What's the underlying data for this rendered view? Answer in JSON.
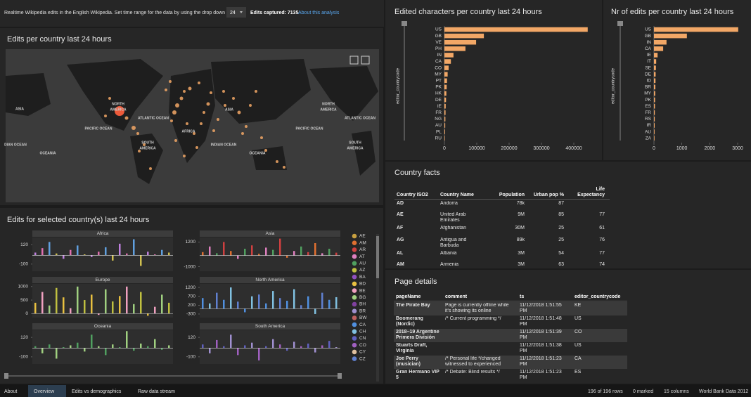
{
  "header": {
    "description": "Realtime Wikipedia edits in the English Wikipedia. Set time range for the data by using the drop down",
    "time_range": "24",
    "edits_captured": "Edits captured: 7135",
    "link": "About this analysis"
  },
  "map": {
    "title": "Edits per country last 24 hours",
    "labels": [
      "ASIA",
      "NORTH",
      "AMERICA",
      "PACIFIC OCEAN",
      "ATLANTIC OCEAN",
      "ASIA",
      "AFRICA",
      "SOUTH",
      "AMERICA",
      "INDIAN OCEAN",
      "OCEANIA",
      "OCEANIA",
      "NORTH",
      "AMERICA",
      "PACIFIC OCEAN",
      "ATLANTIC OCEAN",
      "SOUTH",
      "AMERICA",
      "DIAN OCEAN"
    ]
  },
  "country_timeseries": {
    "title": "Edits for selected country(s) last 24 hours",
    "panels": [
      {
        "name": "Africa",
        "ylim": [
          -180,
          200
        ],
        "yticks": [
          120,
          -100
        ],
        "colors": [
          "#c080e0",
          "#e070b0",
          "#60a0e0",
          "#d0c050"
        ],
        "values": [
          30,
          80,
          150,
          20,
          -40,
          60,
          110,
          10,
          -20,
          40,
          90,
          -60,
          130,
          20,
          180,
          -120,
          40,
          10,
          60,
          30
        ]
      },
      {
        "name": "Asia",
        "ylim": [
          -1400,
          1600
        ],
        "yticks": [
          1200,
          -1000
        ],
        "colors": [
          "#e07030",
          "#e080c0",
          "#50a060",
          "#d04040"
        ],
        "values": [
          300,
          800,
          200,
          1200,
          400,
          -300,
          600,
          900,
          150,
          700,
          500,
          1500,
          -200,
          400,
          800,
          300,
          1100,
          200,
          600,
          250
        ]
      },
      {
        "name": "Europe",
        "ylim": [
          -150,
          1100
        ],
        "yticks": [
          1000,
          500,
          0
        ],
        "colors": [
          "#e8c040",
          "#f0a0c0",
          "#a0d080",
          "#c0c040"
        ],
        "values": [
          400,
          800,
          300,
          950,
          600,
          200,
          1000,
          500,
          700,
          -50,
          900,
          450,
          650,
          1000,
          350,
          800,
          -80,
          250,
          700,
          400
        ]
      },
      {
        "name": "North America",
        "ylim": [
          -500,
          1400
        ],
        "yticks": [
          1200,
          700,
          200,
          -300
        ],
        "colors": [
          "#5090e0",
          "#80c0e0",
          "#6080d0"
        ],
        "values": [
          600,
          300,
          900,
          500,
          1200,
          400,
          -200,
          700,
          800,
          300,
          1000,
          600,
          450,
          1100,
          200,
          700,
          -300,
          900,
          500,
          650
        ]
      },
      {
        "name": "Oceania",
        "ylim": [
          -180,
          200
        ],
        "yticks": [
          120,
          -100
        ],
        "colors": [
          "#50a060",
          "#a0d080"
        ],
        "values": [
          20,
          -60,
          40,
          -120,
          10,
          30,
          60,
          -40,
          150,
          20,
          -80,
          40,
          10,
          190,
          -30,
          50,
          20,
          100,
          -20,
          30
        ]
      },
      {
        "name": "South America",
        "ylim": [
          -180,
          200
        ],
        "yticks": [
          120,
          -100
        ],
        "colors": [
          "#6060c0",
          "#a090d0",
          "#a060c0"
        ],
        "values": [
          40,
          -60,
          90,
          20,
          150,
          -80,
          30,
          60,
          -140,
          20,
          100,
          40,
          -30,
          70,
          20,
          50,
          -50,
          30,
          80,
          10
        ]
      }
    ],
    "legend": [
      {
        "name": "AE",
        "color": "#c8a040"
      },
      {
        "name": "AM",
        "color": "#e07030"
      },
      {
        "name": "AR",
        "color": "#d04040"
      },
      {
        "name": "AT",
        "color": "#e080c0"
      },
      {
        "name": "AU",
        "color": "#50a060"
      },
      {
        "name": "AZ",
        "color": "#c0c040"
      },
      {
        "name": "BA",
        "color": "#9050c0"
      },
      {
        "name": "BD",
        "color": "#e8c040"
      },
      {
        "name": "BE",
        "color": "#f0a0c0"
      },
      {
        "name": "BG",
        "color": "#a0d080"
      },
      {
        "name": "BH",
        "color": "#8040a0"
      },
      {
        "name": "BR",
        "color": "#a090d0"
      },
      {
        "name": "BW",
        "color": "#c06060"
      },
      {
        "name": "CA",
        "color": "#5090e0"
      },
      {
        "name": "CH",
        "color": "#80c0e0"
      },
      {
        "name": "CN",
        "color": "#6060c0"
      },
      {
        "name": "CO",
        "color": "#a060c0"
      },
      {
        "name": "CY",
        "color": "#e0c0a0"
      },
      {
        "name": "CZ",
        "color": "#6080d0"
      }
    ]
  },
  "char_chart": {
    "type": "bar",
    "title": "Edited characters per country last 24 hours",
    "axis_label": "editor_countrycode",
    "categories": [
      "US",
      "GB",
      "VE",
      "PH",
      "IN",
      "CA",
      "CO",
      "MY",
      "PT",
      "PK",
      "HK",
      "DE",
      "IE",
      "FR",
      "NG",
      "AU",
      "PL",
      "RU"
    ],
    "values": [
      443000,
      122000,
      98000,
      65000,
      28000,
      20000,
      13000,
      10000,
      8000,
      7000,
      6000,
      5000,
      4000,
      3500,
      3000,
      2500,
      2000,
      1500
    ],
    "color": "#f2a766",
    "xlim": [
      0,
      450000
    ],
    "xticks": [
      0,
      100000,
      200000,
      300000,
      400000
    ]
  },
  "edits_chart": {
    "type": "bar",
    "title": "Nr of edits per country last 24 hours",
    "axis_label": "editor_countrycode",
    "categories": [
      "US",
      "GB",
      "IN",
      "CA",
      "IE",
      "IT",
      "SE",
      "DE",
      "ID",
      "BR",
      "MY",
      "PK",
      "ES",
      "FR",
      "RS",
      "IR",
      "AU",
      "ZA"
    ],
    "values": [
      3020,
      1180,
      450,
      330,
      130,
      80,
      70,
      60,
      55,
      50,
      45,
      40,
      35,
      30,
      28,
      25,
      22,
      20
    ],
    "color": "#f2a766",
    "xlim": [
      0,
      3100
    ],
    "xticks": [
      0,
      1000,
      2000,
      3000
    ]
  },
  "country_facts": {
    "title": "Country facts",
    "columns": [
      "Country ISO2",
      "Country Name",
      "Population",
      "Urban pop %",
      "Life Expectancy"
    ],
    "rows": [
      [
        "AD",
        "Andorra",
        "78k",
        87,
        null
      ],
      [
        "AE",
        "United Arab Emirates",
        "9M",
        85,
        77
      ],
      [
        "AF",
        "Afghanistan",
        "30M",
        25,
        61
      ],
      [
        "AG",
        "Antigua and Barbuda",
        "89k",
        25,
        76
      ],
      [
        "AL",
        "Albania",
        "3M",
        54,
        77
      ],
      [
        "AM",
        "Armenia",
        "3M",
        63,
        74
      ]
    ]
  },
  "page_details": {
    "title": "Page details",
    "columns": [
      "pageName",
      "comment",
      "ts",
      "editor_countrycode"
    ],
    "rows": [
      [
        "The Pirate Bay",
        "Page is currently offline while it's showing its online",
        "11/12/2018 1:51:55 PM",
        "KE"
      ],
      [
        "Boomerang (Nordic)",
        "/* Current programming */",
        "11/12/2018 1:51:48 PM",
        "US"
      ],
      [
        "2018–19 Argentine Primera División",
        null,
        "11/12/2018 1:51:39 PM",
        "CO"
      ],
      [
        "Stuarts Draft, Virginia",
        null,
        "11/12/2018 1:51:38 PM",
        "US"
      ],
      [
        "Joe Perry (musician)",
        "/* Personal life */changed witnessed to experienced",
        "11/12/2018 1:51:23 PM",
        "CA"
      ],
      [
        "Gran Hermano VIP 5",
        "/* Debate: Blind results */",
        "11/12/2018 1:51:23 PM",
        "ES"
      ]
    ]
  },
  "status": {
    "tabs": [
      "About",
      "Overview",
      "Edits vs demographics",
      "Raw data stream"
    ],
    "rows": "196 of 196 rows",
    "marked": "0 marked",
    "columns": "15 columns",
    "source": "World Bank Data 2012"
  }
}
